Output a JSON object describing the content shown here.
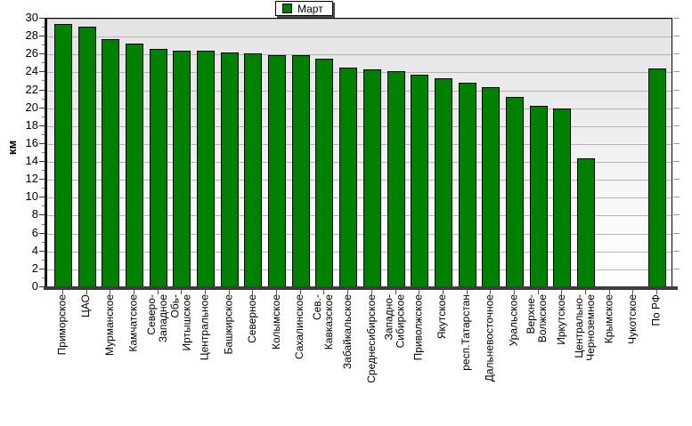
{
  "chart_data": {
    "type": "bar",
    "title": "",
    "legend": [
      "Март"
    ],
    "legend_position": "top-center",
    "ylabel": "км",
    "xlabel": "",
    "ylim": [
      0,
      30
    ],
    "ytick_step": 2,
    "grid": true,
    "bar_color": "#008000",
    "bar_border_color": "#000000",
    "plot_bg_top": "#e4e4e4",
    "plot_bg_bottom": "#ffffff",
    "categories": [
      "Приморское",
      "ЦАО",
      "Мурманское",
      "Камчатское",
      "Северо-Западное",
      "Обь-Иртышское",
      "Центральное",
      "Башкирское",
      "Северное",
      "Колымское",
      "Сахалинское",
      "Сев.-Кавказское",
      "Забайкальское",
      "Среднесибирское",
      "Западно-Сибирское",
      "Приволжское",
      "Якутское",
      "респ.Татарстан",
      "Дальневосточное",
      "Уральское",
      "Верхне-Волжское",
      "Иркутское",
      "Центрально-Черноземное",
      "Крымское",
      "Чукотское",
      "По РФ"
    ],
    "categories_display": [
      [
        "Приморское"
      ],
      [
        "ЦАО"
      ],
      [
        "Мурманское"
      ],
      [
        "Камчатское"
      ],
      [
        "Северо-",
        "Западное"
      ],
      [
        "Обь-",
        "Иртышское"
      ],
      [
        "Центральное"
      ],
      [
        "Башкирское"
      ],
      [
        "Северное"
      ],
      [
        "Колымское"
      ],
      [
        "Сахалинское"
      ],
      [
        "Сев.-",
        "Кавказское"
      ],
      [
        "Забайкальское"
      ],
      [
        "Среднесибирское"
      ],
      [
        "Западно-",
        "Сибирское"
      ],
      [
        "Приволжское"
      ],
      [
        "Якутское"
      ],
      [
        "респ.Татарстан"
      ],
      [
        "Дальневосточное"
      ],
      [
        "Уральское"
      ],
      [
        "Верхне-",
        "Волжское"
      ],
      [
        "Иркутское"
      ],
      [
        "Центрально-",
        "Черноземное"
      ],
      [
        "Крымское"
      ],
      [
        "Чукотское"
      ],
      [
        "По РФ"
      ]
    ],
    "values": [
      29.4,
      29.1,
      27.7,
      27.2,
      26.6,
      26.4,
      26.4,
      26.2,
      26.1,
      25.9,
      25.9,
      25.5,
      24.5,
      24.3,
      24.1,
      23.7,
      23.3,
      22.8,
      22.4,
      21.3,
      20.3,
      20.0,
      14.4,
      0,
      0,
      24.4
    ]
  }
}
